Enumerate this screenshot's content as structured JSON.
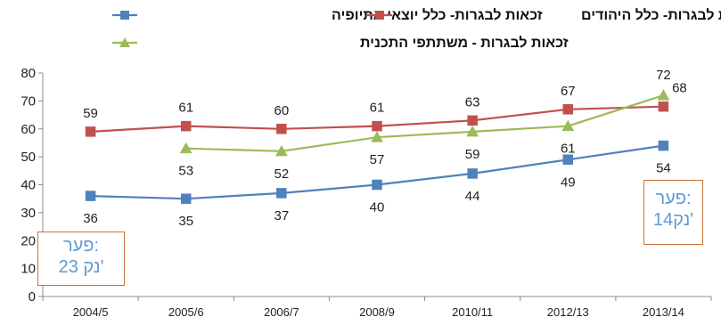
{
  "chart_data": {
    "type": "line",
    "categories": [
      "2004/5",
      "2005/6",
      "2006/7",
      "2008/9",
      "2010/11",
      "2012/13",
      "2013/14"
    ],
    "ylim": [
      0,
      80
    ],
    "yticks": [
      0,
      10,
      20,
      30,
      40,
      50,
      60,
      70,
      80
    ],
    "grid": false,
    "legend_position": "top",
    "series": [
      {
        "name": "זכאות לבגרות- כלל יוצאי אתיופיה",
        "color": "#4f81bd",
        "marker": "square",
        "values": [
          36,
          35,
          37,
          40,
          44,
          49,
          54
        ]
      },
      {
        "name": "זכאות לבגרות- כלל היהודים",
        "color": "#c0504d",
        "marker": "square",
        "values": [
          59,
          61,
          60,
          61,
          63,
          67,
          68
        ]
      },
      {
        "name": "זכאות לבגרות - משתתפי התכנית",
        "color": "#9bbb59",
        "marker": "triangle",
        "values": [
          null,
          53,
          52,
          57,
          59,
          61,
          72
        ]
      }
    ],
    "annotations": [
      {
        "id": "gap-2004",
        "line1": "פער:",
        "line2": "23 נק'"
      },
      {
        "id": "gap-2013",
        "line1": "פער:",
        "line2": "14נק'"
      }
    ]
  }
}
